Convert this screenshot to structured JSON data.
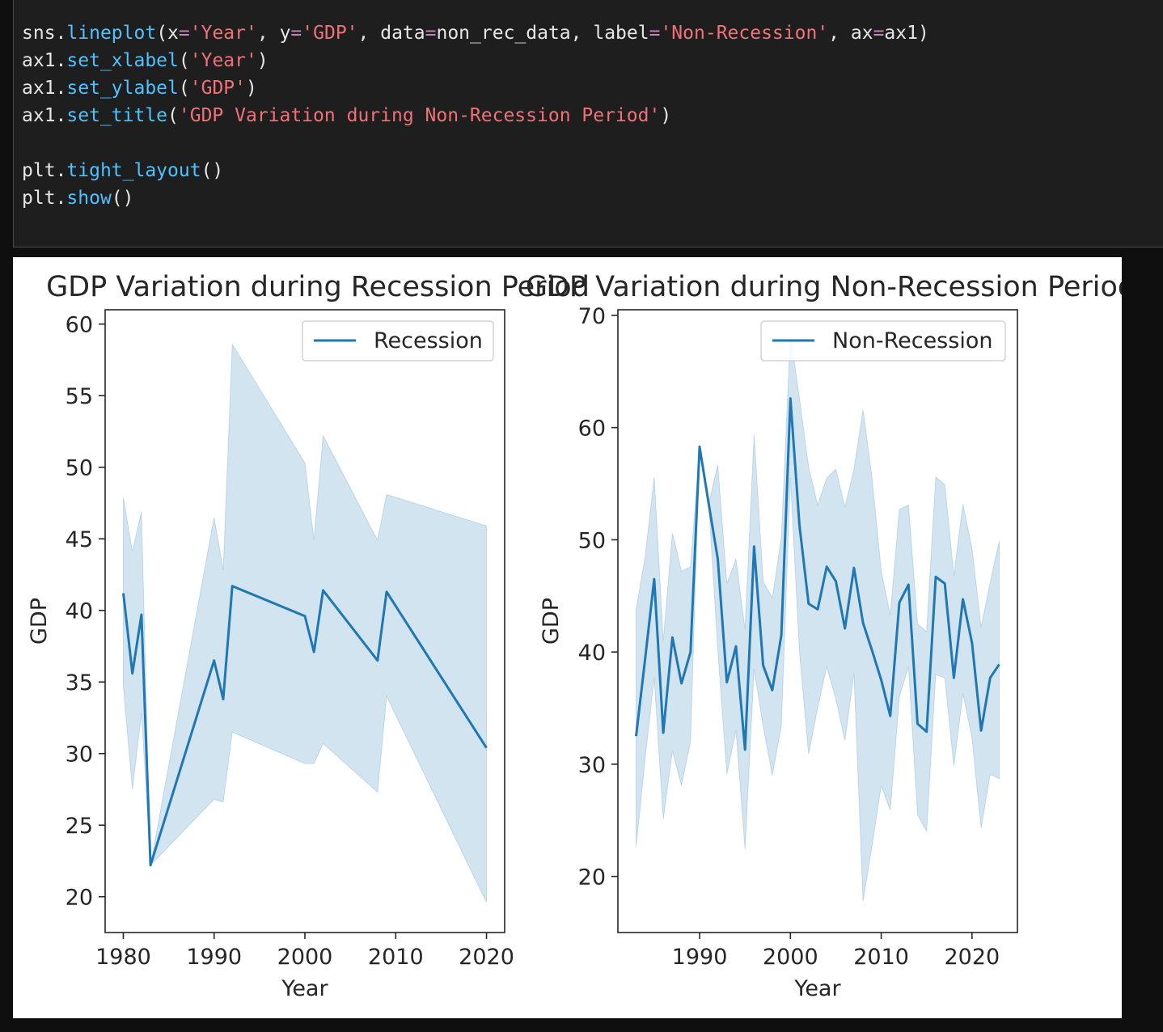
{
  "code_cell": {
    "lines": [
      [
        [
          "sns",
          "p"
        ],
        [
          ".",
          "p"
        ],
        [
          "lineplot",
          "f"
        ],
        [
          "(",
          "p"
        ],
        [
          "x",
          "p"
        ],
        [
          "=",
          "o"
        ],
        [
          "'Year'",
          "s"
        ],
        [
          ", ",
          "p"
        ],
        [
          "y",
          "p"
        ],
        [
          "=",
          "o"
        ],
        [
          "'GDP'",
          "s"
        ],
        [
          ", data",
          "p"
        ],
        [
          "=",
          "o"
        ],
        [
          "non_rec_data, label",
          "p"
        ],
        [
          "=",
          "o"
        ],
        [
          "'Non-Recession'",
          "s"
        ],
        [
          ", ax",
          "p"
        ],
        [
          "=",
          "o"
        ],
        [
          "ax1)",
          "p"
        ]
      ],
      [
        [
          "ax1",
          "p"
        ],
        [
          ".",
          "p"
        ],
        [
          "set_xlabel",
          "f"
        ],
        [
          "(",
          "p"
        ],
        [
          "'Year'",
          "s"
        ],
        [
          ")",
          "p"
        ]
      ],
      [
        [
          "ax1",
          "p"
        ],
        [
          ".",
          "p"
        ],
        [
          "set_ylabel",
          "f"
        ],
        [
          "(",
          "p"
        ],
        [
          "'GDP'",
          "s"
        ],
        [
          ")",
          "p"
        ]
      ],
      [
        [
          "ax1",
          "p"
        ],
        [
          ".",
          "p"
        ],
        [
          "set_title",
          "f"
        ],
        [
          "(",
          "p"
        ],
        [
          "'GDP Variation during Non-Recession Period'",
          "s"
        ],
        [
          ")",
          "p"
        ]
      ],
      [],
      [
        [
          "plt",
          "p"
        ],
        [
          ".",
          "p"
        ],
        [
          "tight_layout",
          "f"
        ],
        [
          "()",
          "p"
        ]
      ],
      [
        [
          "plt",
          "p"
        ],
        [
          ".",
          "p"
        ],
        [
          "show",
          "f"
        ],
        [
          "()",
          "p"
        ]
      ]
    ]
  },
  "colors": {
    "line": "#1f77b4",
    "band": "#1f77b4",
    "axis": "#262626",
    "code_bg": "#1e1e1e",
    "code_func": "#4fc1ff",
    "code_string": "#f07178",
    "code_operator": "#c586c0"
  },
  "chart_data": [
    {
      "type": "line",
      "title": "GDP Variation during Recession Period",
      "xlabel": "Year",
      "ylabel": "GDP",
      "xlim": [
        1978,
        2022
      ],
      "ylim": [
        17.5,
        61
      ],
      "xticks": [
        1980,
        1990,
        2000,
        2010,
        2020
      ],
      "yticks": [
        20,
        25,
        30,
        35,
        40,
        45,
        50,
        55,
        60
      ],
      "legend": {
        "label": "Recession",
        "position": "top-right"
      },
      "series": [
        {
          "name": "Recession",
          "x": [
            1980,
            1981,
            1982,
            1983,
            1990,
            1991,
            1992,
            2000,
            2001,
            2002,
            2008,
            2009,
            2020
          ],
          "y": [
            41.2,
            35.6,
            39.7,
            22.2,
            36.5,
            33.8,
            41.7,
            39.6,
            37.1,
            41.4,
            36.5,
            41.3,
            30.4
          ],
          "ci_lower": [
            34.7,
            27.5,
            32.8,
            22.2,
            26.8,
            26.6,
            31.5,
            29.3,
            29.3,
            30.7,
            27.3,
            34.0,
            19.6
          ],
          "ci_upper": [
            47.9,
            44.1,
            46.9,
            22.2,
            46.5,
            42.8,
            58.6,
            50.3,
            44.9,
            52.2,
            44.9,
            48.1,
            45.9
          ]
        }
      ]
    },
    {
      "type": "line",
      "title": "GDP Variation during Non-Recession Period",
      "xlabel": "Year",
      "ylabel": "GDP",
      "xlim": [
        1981,
        2025
      ],
      "ylim": [
        15,
        70.5
      ],
      "xticks": [
        1990,
        2000,
        2010,
        2020
      ],
      "yticks": [
        20,
        30,
        40,
        50,
        60,
        70
      ],
      "legend": {
        "label": "Non-Recession",
        "position": "top-right"
      },
      "series": [
        {
          "name": "Non-Recession",
          "x": [
            1983,
            1984,
            1985,
            1986,
            1987,
            1988,
            1989,
            1990,
            1991,
            1992,
            1993,
            1994,
            1995,
            1996,
            1997,
            1998,
            1999,
            2000,
            2001,
            2002,
            2003,
            2004,
            2005,
            2006,
            2007,
            2008,
            2009,
            2010,
            2011,
            2012,
            2013,
            2014,
            2015,
            2016,
            2017,
            2018,
            2019,
            2020,
            2021,
            2022,
            2023
          ],
          "y": [
            32.5,
            39.4,
            46.5,
            32.8,
            41.3,
            37.2,
            40.0,
            58.3,
            53.2,
            48.3,
            37.3,
            40.5,
            31.3,
            49.4,
            38.8,
            36.6,
            41.5,
            62.6,
            51.3,
            44.3,
            43.8,
            47.6,
            46.3,
            42.1,
            47.5,
            42.6,
            40.1,
            37.5,
            34.3,
            44.4,
            46.0,
            33.6,
            32.9,
            46.7,
            46.1,
            37.7,
            44.7,
            40.8,
            33.0,
            37.7,
            38.9
          ],
          "ci_lower": [
            22.6,
            30.5,
            37.7,
            25.1,
            31.2,
            28.1,
            32.0,
            58.3,
            53.2,
            40.2,
            29.1,
            33.0,
            22.4,
            38.5,
            33.4,
            29.0,
            33.4,
            55.5,
            40.0,
            30.9,
            35.0,
            38.7,
            35.8,
            32.1,
            38.1,
            17.8,
            22.8,
            28.1,
            25.9,
            36.0,
            38.7,
            25.5,
            24.0,
            38.0,
            37.7,
            29.8,
            36.3,
            32.3,
            24.3,
            29.1,
            28.7
          ],
          "ci_upper": [
            43.8,
            48.5,
            55.6,
            41.0,
            50.6,
            47.2,
            47.6,
            58.3,
            53.2,
            56.7,
            46.1,
            48.3,
            42.0,
            59.4,
            46.3,
            44.8,
            50.2,
            68.3,
            62.6,
            56.5,
            53.1,
            55.5,
            56.3,
            52.9,
            56.3,
            61.6,
            55.4,
            47.2,
            43.3,
            52.7,
            53.1,
            42.5,
            41.8,
            55.6,
            54.9,
            46.8,
            53.2,
            49.2,
            42.2,
            46.2,
            49.9
          ]
        }
      ]
    }
  ]
}
